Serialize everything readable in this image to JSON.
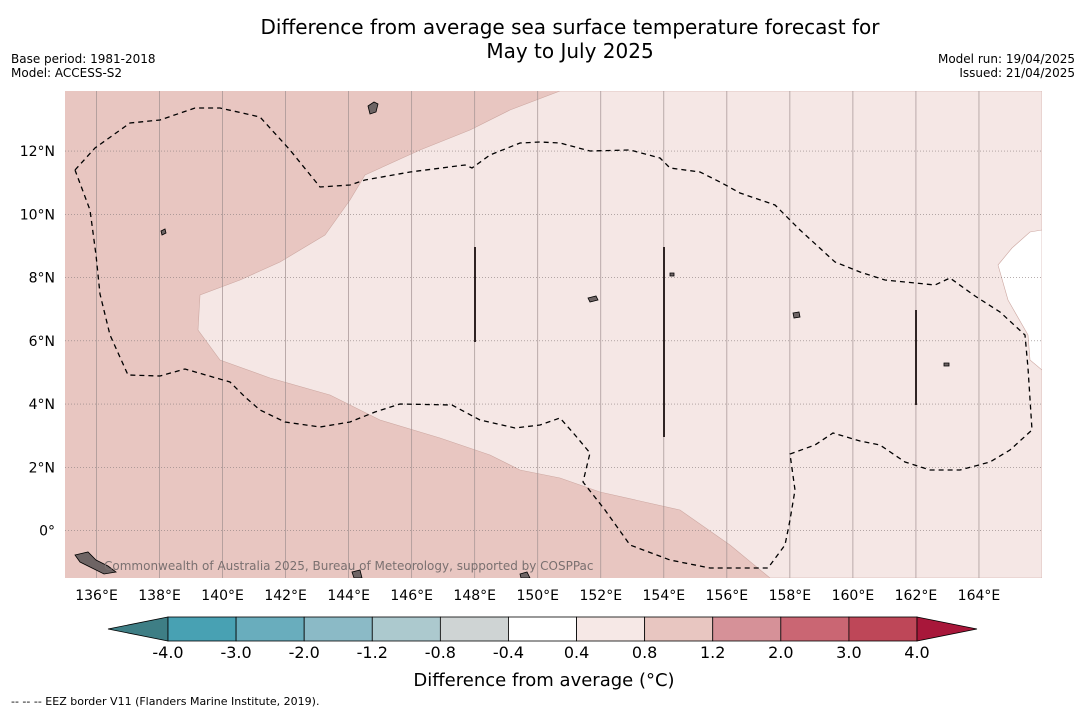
{
  "header": {
    "title_line1": "Difference from average sea surface temperature forecast for",
    "title_line2": "May to July 2025",
    "base_period": "Base period: 1981-2018",
    "model": "Model: ACCESS-S2",
    "model_run": "Model run: 19/04/2025",
    "issued": "Issued: 21/04/2025"
  },
  "map": {
    "lon_ticks": [
      136,
      138,
      140,
      142,
      144,
      146,
      148,
      150,
      152,
      154,
      156,
      158,
      160,
      162,
      164
    ],
    "lon_labels": [
      "136°E",
      "138°E",
      "140°E",
      "142°E",
      "144°E",
      "146°E",
      "148°E",
      "150°E",
      "152°E",
      "154°E",
      "156°E",
      "158°E",
      "160°E",
      "162°E",
      "164°E"
    ],
    "lat_ticks": [
      12,
      10,
      8,
      6,
      4,
      2,
      0
    ],
    "lat_labels": [
      "12°N",
      "10°N",
      "8°N",
      "6°N",
      "4°N",
      "2°N",
      "0°"
    ],
    "lon_range": [
      135.0,
      166.0
    ],
    "lat_range": [
      -1.5,
      13.9
    ],
    "copyright": "Commonwealth of Australia 2025, Bureau of Meteorology, supported by COSPPac",
    "colors": {
      "band_0p8_1p2": "#e8c6c1",
      "band_0p4_0p8": "#f5e7e5",
      "band_m0p4_0p4": "#ffffff"
    }
  },
  "colorbar": {
    "tick_labels": [
      "-4.0",
      "-3.0",
      "-2.0",
      "-1.2",
      "-0.8",
      "-0.4",
      "0.4",
      "0.8",
      "1.2",
      "2.0",
      "3.0",
      "4.0"
    ],
    "colors": [
      "#3e7e85",
      "#48a1b3",
      "#69adbd",
      "#8bbac6",
      "#acc9ce",
      "#cfd4d4",
      "#ffffff",
      "#f6e8e6",
      "#e8c6c1",
      "#d69198",
      "#ca6673",
      "#be4758",
      "#a8173a"
    ],
    "title": "Difference from average (°C)"
  },
  "footnote": "--  --  -- EEZ border V11 (Flanders Marine Institute, 2019)."
}
